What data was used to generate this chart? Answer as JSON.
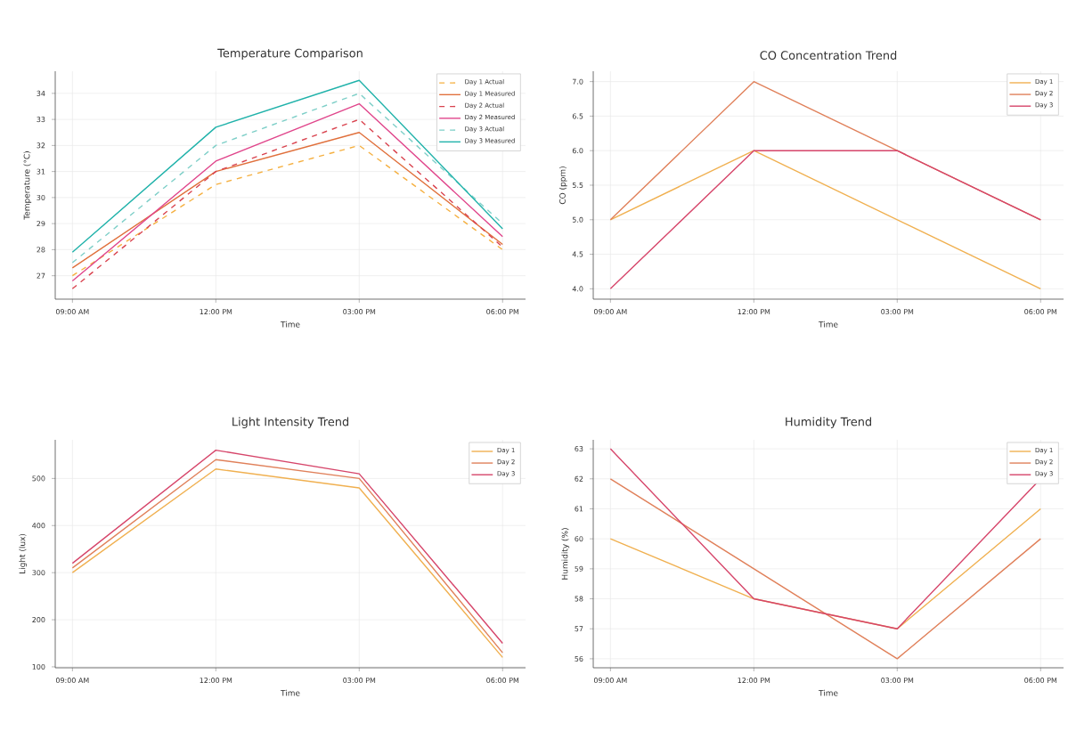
{
  "chart_data": [
    {
      "type": "line",
      "title": "Temperature Comparison",
      "xlabel": "Time",
      "ylabel": "Temperature (°C)",
      "categories": [
        "09:00 AM",
        "12:00 PM",
        "03:00 PM",
        "06:00 PM"
      ],
      "series": [
        {
          "name": "Day 1 Actual",
          "color": "#f5b041",
          "line_style": "dashed",
          "values": [
            27.0,
            30.5,
            32.0,
            28.0
          ]
        },
        {
          "name": "Day 1 Measured",
          "color": "#e0703c",
          "line_style": "solid",
          "values": [
            27.3,
            31.0,
            32.5,
            28.2
          ]
        },
        {
          "name": "Day 2 Actual",
          "color": "#d9434f",
          "line_style": "dashed",
          "values": [
            26.5,
            31.0,
            33.0,
            28.1
          ]
        },
        {
          "name": "Day 2 Measured",
          "color": "#e0458b",
          "line_style": "solid",
          "values": [
            26.8,
            31.4,
            33.6,
            28.5
          ]
        },
        {
          "name": "Day 3 Actual",
          "color": "#7ecfc8",
          "line_style": "dashed",
          "values": [
            27.5,
            32.0,
            34.0,
            29.0
          ]
        },
        {
          "name": "Day 3 Measured",
          "color": "#20b2aa",
          "line_style": "solid",
          "values": [
            27.9,
            32.7,
            34.5,
            28.8
          ]
        }
      ],
      "ylim": [
        26.1,
        34.85
      ],
      "yticks": [
        27,
        28,
        29,
        30,
        31,
        32,
        33,
        34
      ],
      "grid": true,
      "legend": "top right"
    },
    {
      "type": "line",
      "title": "CO Concentration Trend",
      "xlabel": "Time",
      "ylabel": "CO (ppm)",
      "categories": [
        "09:00 AM",
        "12:00 PM",
        "03:00 PM",
        "06:00 PM"
      ],
      "series": [
        {
          "name": "Day 1",
          "color": "#f0b050",
          "values": [
            5.0,
            6.0,
            5.0,
            4.0
          ]
        },
        {
          "name": "Day 2",
          "color": "#e0805a",
          "values": [
            5.0,
            7.0,
            6.0,
            5.0
          ]
        },
        {
          "name": "Day 3",
          "color": "#d6456a",
          "values": [
            4.0,
            6.0,
            6.0,
            5.0
          ]
        }
      ],
      "ylim": [
        3.85,
        7.15
      ],
      "yticks": [
        {
          "value": 4.0,
          "label": "4.0"
        },
        4.5,
        {
          "value": 5.0,
          "label": "5.0"
        },
        5.5,
        {
          "value": 6.0,
          "label": "6.0"
        },
        6.5,
        {
          "value": 7.0,
          "label": "7.0"
        }
      ],
      "grid": true,
      "legend": "top right"
    },
    {
      "type": "line",
      "title": "Light Intensity Trend",
      "xlabel": "Time",
      "ylabel": "Light (lux)",
      "categories": [
        "09:00 AM",
        "12:00 PM",
        "03:00 PM",
        "06:00 PM"
      ],
      "series": [
        {
          "name": "Day 1",
          "color": "#f0b050",
          "values": [
            300,
            520,
            480,
            120
          ]
        },
        {
          "name": "Day 2",
          "color": "#e0805a",
          "values": [
            310,
            540,
            500,
            130
          ]
        },
        {
          "name": "Day 3",
          "color": "#d6456a",
          "values": [
            320,
            560,
            510,
            150
          ]
        }
      ],
      "ylim": [
        98,
        582
      ],
      "yticks": [
        100,
        200,
        300,
        400,
        500
      ],
      "grid": true,
      "legend": "top right"
    },
    {
      "type": "line",
      "title": "Humidity Trend",
      "xlabel": "Time",
      "ylabel": "Humidity (%)",
      "categories": [
        "09:00 AM",
        "12:00 PM",
        "03:00 PM",
        "06:00 PM"
      ],
      "series": [
        {
          "name": "Day 1",
          "color": "#f0b050",
          "values": [
            60,
            58,
            57,
            61
          ]
        },
        {
          "name": "Day 2",
          "color": "#e0805a",
          "values": [
            62,
            59,
            56,
            60
          ]
        },
        {
          "name": "Day 3",
          "color": "#d6456a",
          "values": [
            63,
            58,
            57,
            62
          ]
        }
      ],
      "ylim": [
        55.7,
        63.3
      ],
      "yticks": [
        56,
        57,
        58,
        59,
        60,
        61,
        62,
        63
      ],
      "grid": true,
      "legend": "top right"
    }
  ]
}
